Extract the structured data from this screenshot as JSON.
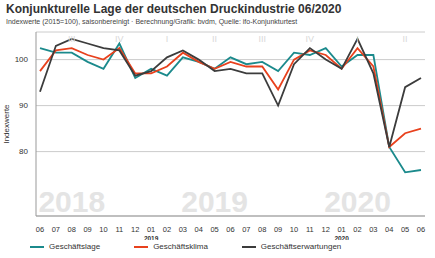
{
  "chart_data": {
    "type": "line",
    "title": "Konjunkturelle Lage der deutschen Druckindustrie 06/2020",
    "subtitle": "Indexwerte (2015=100), saisonbereinigt · Berechnung/Grafik: bvdm, Quelle: ifo-Konjunkturtest",
    "y_label": "Indexwerte",
    "categories": [
      "06",
      "07",
      "08",
      "09",
      "10",
      "11",
      "12",
      "01",
      "02",
      "03",
      "04",
      "05",
      "06",
      "07",
      "08",
      "09",
      "10",
      "11",
      "12",
      "01",
      "02",
      "03",
      "04",
      "05",
      "06"
    ],
    "series": [
      {
        "name": "Geschäftslage",
        "color": "#1b8a8c",
        "values": [
          102.5,
          101.5,
          101.5,
          99.5,
          98,
          103.5,
          96,
          98,
          96.5,
          100.5,
          99.5,
          98,
          100.5,
          99,
          99.5,
          97.5,
          101.5,
          101,
          102.5,
          98.5,
          101,
          101,
          81,
          75.5,
          76
        ]
      },
      {
        "name": "Geschäftsklima",
        "color": "#e8411d",
        "values": [
          97.5,
          102,
          102.5,
          101,
          100,
          102.5,
          97,
          97,
          98.5,
          101.5,
          99.5,
          98,
          99.5,
          98.5,
          98.5,
          93.5,
          100,
          102,
          101,
          98,
          102.5,
          98.5,
          81,
          84,
          85
        ]
      },
      {
        "name": "Geschäftserwartungen",
        "color": "#3c3c3c",
        "values": [
          93,
          103,
          104.5,
          103.5,
          102.5,
          102,
          96.5,
          97.5,
          100.5,
          102,
          100,
          97.5,
          98,
          97,
          97,
          90,
          99,
          102.5,
          100,
          98,
          104.5,
          97,
          81,
          94,
          96
        ]
      }
    ],
    "ylim": [
      66,
      106
    ],
    "yticks": [
      80,
      90,
      100
    ],
    "grid": true,
    "legend": "bottom",
    "annotations": [
      {
        "text": "2018",
        "x": 2
      },
      {
        "text": "2019",
        "x": 11
      },
      {
        "text": "2020",
        "x": 20
      }
    ],
    "quarter_labels": [
      {
        "text": "III",
        "x": 2
      },
      {
        "text": "IV",
        "x": 5
      },
      {
        "text": "I",
        "x": 8
      },
      {
        "text": "II",
        "x": 11
      },
      {
        "text": "III",
        "x": 14
      },
      {
        "text": "IV",
        "x": 17
      },
      {
        "text": "I",
        "x": 20
      },
      {
        "text": "II",
        "x": 23
      }
    ],
    "year_labels": [
      {
        "text": "2019",
        "x": 7
      },
      {
        "text": "2020",
        "x": 19
      }
    ]
  }
}
